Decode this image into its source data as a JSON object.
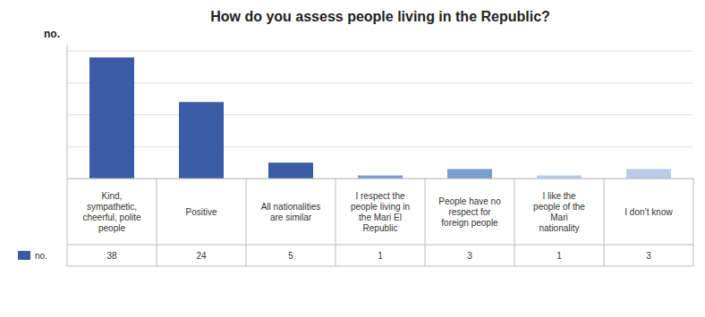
{
  "chart_data": {
    "type": "bar",
    "title": "How do you assess people living in the Republic?",
    "ylabel": "no.",
    "categories": [
      "Kind,\nsympathetic,\ncheerful, polite\npeople",
      "Positive",
      "All nationalities\nare similar",
      "I respect the\npeople living in\nthe Mari El\nRepublic",
      "People have no\nrespect for\nforeign people",
      "I like the\npeople of the\nMari\nnationality",
      "I don’t know"
    ],
    "series": [
      {
        "name": "no.",
        "color": "#3B5BA5",
        "colors": [
          "#3B5BA5",
          "#3B5BA5",
          "#3B5BA5",
          "#7A9FD0",
          "#7A9FD0",
          "#B8CCEA",
          "#B8CCEA"
        ],
        "values": [
          38,
          24,
          5,
          1,
          3,
          1,
          3
        ]
      }
    ],
    "ylim": [
      0,
      42
    ],
    "yticks": [
      0,
      10,
      20,
      30,
      40
    ],
    "grid": true,
    "tick_labels": false,
    "data_labels": true,
    "legend": "bottom left"
  }
}
